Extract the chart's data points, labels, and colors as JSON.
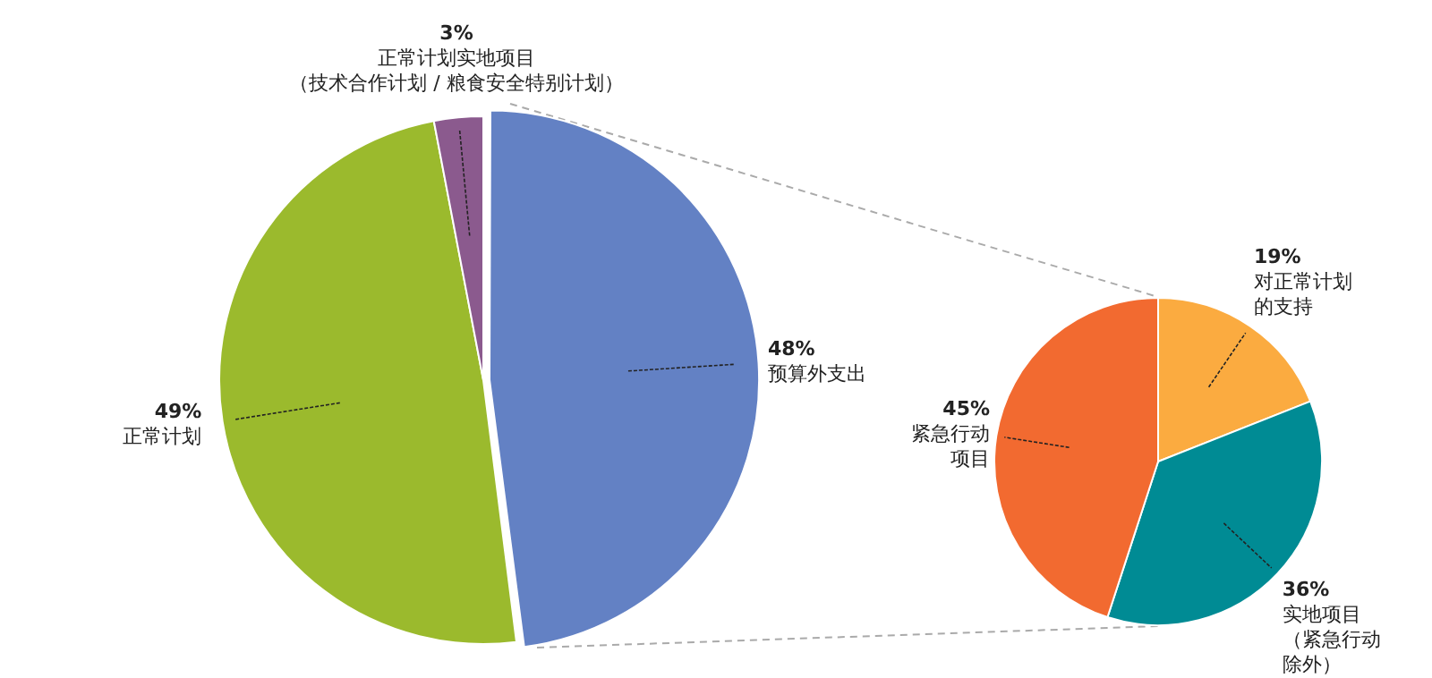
{
  "chart_data": [
    {
      "type": "pie",
      "categories": [
        "预算外支出",
        "正常计划",
        "正常计划实地项目（技术合作计划 / 粮食安全特别计划）"
      ],
      "values": [
        48,
        49,
        3
      ],
      "colors": [
        "#6381c4",
        "#9bba2d",
        "#8b5a8e"
      ],
      "value_labels": [
        "48%",
        "49%",
        "3%"
      ]
    },
    {
      "type": "pie",
      "categories": [
        "对正常计划的支持",
        "实地项目（紧急行动除外）",
        "紧急行动项目"
      ],
      "values": [
        19,
        36,
        45
      ],
      "colors": [
        "#fbab40",
        "#008b94",
        "#f26a30"
      ],
      "value_labels": [
        "19%",
        "36%",
        "45%"
      ]
    }
  ]
}
